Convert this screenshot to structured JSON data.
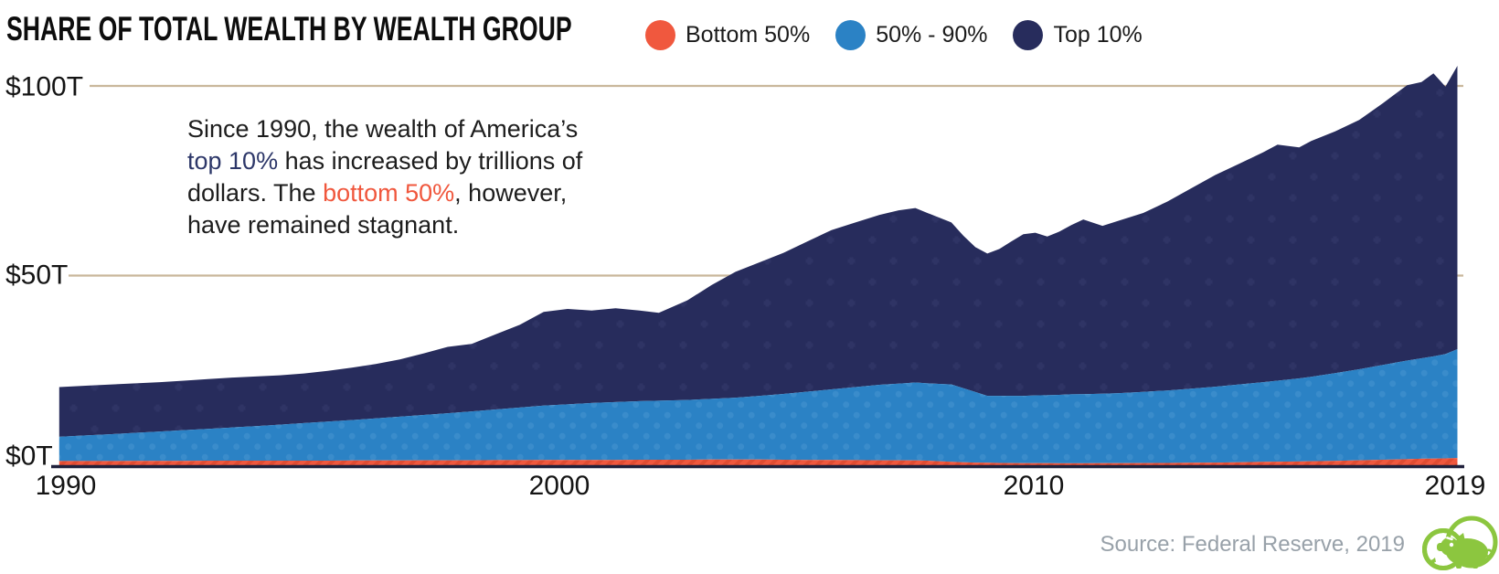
{
  "header": {
    "title": "SHARE OF TOTAL WEALTH BY WEALTH GROUP"
  },
  "annotation": {
    "lines": [
      [
        {
          "t": "Since 1990, the wealth of America’s"
        }
      ],
      [
        {
          "t": "top 10%"
        },
        {
          "t": " has increased by trillions of"
        }
      ],
      [
        {
          "t": "dollars. The "
        },
        {
          "t": "bottom 50%"
        },
        {
          "t": ", however,"
        }
      ],
      [
        {
          "t": "have remained stagnant."
        }
      ]
    ]
  },
  "source": {
    "text": "Source: Federal Reserve, 2019"
  },
  "logo": {
    "name": "piggy-bank-logo",
    "color": "#8cc63f"
  },
  "colors": {
    "gridline": "#c9b79b",
    "baseline": "#20213c",
    "navy_pattern": "#2f3465",
    "blue_pattern": "#3a8ccb",
    "orange_stripe": "#e04c32",
    "title_text": "#0d0d0d",
    "axis_text": "#141414",
    "source_text": "#98a1a9"
  },
  "chart_data": {
    "type": "area",
    "stacked": true,
    "title": "SHARE OF TOTAL WEALTH BY WEALTH GROUP",
    "unit": "trillions of US dollars",
    "xlabel": "",
    "ylabel": "",
    "xlim": [
      1989.9,
      2019.05
    ],
    "ylim": [
      0,
      107
    ],
    "grid": "horizontal",
    "legend_position": "top",
    "y_ticks": [
      {
        "label": "$0T",
        "value": 0
      },
      {
        "label": "$50T",
        "value": 50
      },
      {
        "label": "$100T",
        "value": 100
      }
    ],
    "x_ticks": [
      {
        "label": "1990",
        "value": 1990
      },
      {
        "label": "2000",
        "value": 2000
      },
      {
        "label": "2010",
        "value": 2010
      },
      {
        "label": "2019",
        "value": 2019
      }
    ],
    "x": [
      1989.9,
      1990.5,
      1991,
      1991.5,
      1992,
      1992.5,
      1993,
      1993.5,
      1994,
      1994.5,
      1995,
      1995.5,
      1996,
      1996.5,
      1997,
      1997.5,
      1998,
      1998.5,
      1999,
      1999.5,
      2000,
      2000.5,
      2001,
      2001.5,
      2002,
      2002.4,
      2003,
      2003.5,
      2004,
      2004.5,
      2005,
      2005.5,
      2006,
      2006.5,
      2007,
      2007.4,
      2007.75,
      2008,
      2008.5,
      2008.75,
      2009,
      2009.25,
      2009.5,
      2009.75,
      2010,
      2010.25,
      2010.5,
      2010.75,
      2011,
      2011.25,
      2011.65,
      2012,
      2012.5,
      2013,
      2013.5,
      2014,
      2014.5,
      2015,
      2015.3,
      2015.75,
      2016,
      2016.5,
      2017,
      2017.5,
      2018,
      2018.3,
      2018.55,
      2018.8,
      2019.05
    ],
    "series": [
      {
        "name": "Bottom 50%",
        "color": "#f0583e",
        "values": [
          1.1,
          1.1,
          1.1,
          1.15,
          1.15,
          1.15,
          1.2,
          1.2,
          1.2,
          1.2,
          1.2,
          1.2,
          1.25,
          1.25,
          1.25,
          1.3,
          1.3,
          1.3,
          1.35,
          1.35,
          1.4,
          1.4,
          1.4,
          1.4,
          1.45,
          1.45,
          1.45,
          1.5,
          1.5,
          1.5,
          1.45,
          1.4,
          1.4,
          1.35,
          1.3,
          1.3,
          1.25,
          1.2,
          0.9,
          0.8,
          0.7,
          0.65,
          0.6,
          0.57,
          0.55,
          0.53,
          0.52,
          0.51,
          0.5,
          0.5,
          0.52,
          0.55,
          0.57,
          0.6,
          0.65,
          0.7,
          0.8,
          0.9,
          0.95,
          1.0,
          1.05,
          1.15,
          1.3,
          1.45,
          1.6,
          1.7,
          1.75,
          1.8,
          1.9
        ]
      },
      {
        "name": "50% - 90%",
        "color": "#2b82c5",
        "values": [
          6.4,
          6.8,
          7.1,
          7.4,
          7.75,
          8.1,
          8.4,
          8.75,
          9.1,
          9.5,
          9.9,
          10.3,
          10.65,
          11.1,
          11.55,
          11.95,
          12.4,
          12.9,
          13.35,
          13.85,
          14.3,
          14.65,
          15.0,
          15.25,
          15.45,
          15.55,
          15.75,
          16.0,
          16.3,
          16.8,
          17.35,
          18.0,
          18.6,
          19.25,
          19.9,
          20.2,
          20.55,
          20.4,
          20.4,
          19.5,
          18.6,
          17.65,
          17.7,
          17.73,
          17.75,
          17.87,
          17.93,
          18.04,
          18.2,
          18.25,
          18.33,
          18.45,
          18.78,
          19.1,
          19.55,
          20.0,
          20.5,
          21.0,
          21.35,
          21.9,
          22.25,
          23.15,
          24.0,
          25.0,
          26.0,
          26.5,
          26.95,
          27.5,
          28.7
        ]
      },
      {
        "name": "Top 10%",
        "color": "#272c5c",
        "values": [
          13.1,
          13.1,
          13.1,
          13.05,
          13.0,
          13.05,
          13.1,
          13.15,
          13.1,
          13.0,
          13.1,
          13.4,
          13.8,
          14.35,
          15.1,
          16.25,
          17.5,
          17.8,
          19.8,
          21.8,
          24.7,
          25.15,
          24.4,
          24.75,
          23.9,
          23.2,
          26.3,
          30.0,
          33.2,
          35.2,
          37.2,
          39.6,
          42.0,
          43.4,
          44.8,
          45.7,
          46.0,
          44.9,
          42.7,
          40.2,
          38.2,
          37.5,
          38.7,
          40.7,
          42.6,
          42.9,
          41.85,
          43.05,
          44.6,
          46.05,
          44.25,
          45.5,
          47.15,
          49.8,
          52.8,
          55.8,
          58.2,
          60.6,
          62.2,
          60.9,
          62.2,
          63.7,
          65.7,
          69.05,
          72.6,
          72.8,
          74.6,
          70.5,
          74.7
        ]
      }
    ]
  }
}
